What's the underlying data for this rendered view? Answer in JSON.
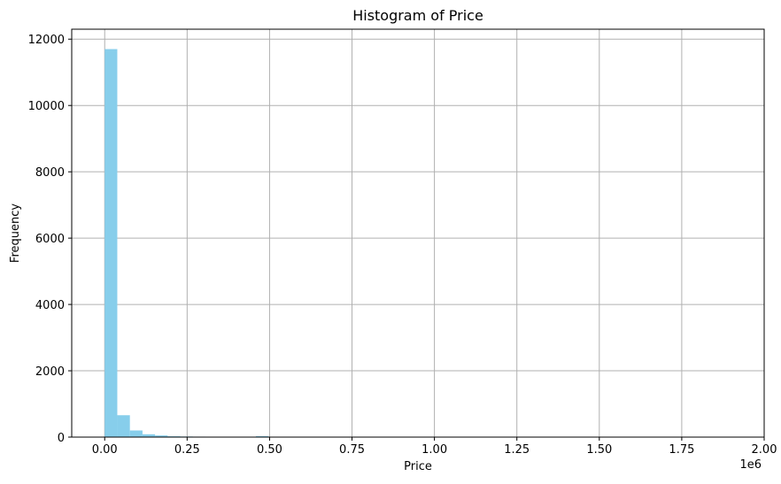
{
  "chart_data": {
    "type": "bar",
    "title": "Histogram of Price",
    "xlabel": "Price",
    "ylabel": "Frequency",
    "x_offset_label": "1e6",
    "xlim": [
      -0.1,
      2.0
    ],
    "ylim": [
      0,
      12300
    ],
    "x_ticks": [
      0.0,
      0.25,
      0.5,
      0.75,
      1.0,
      1.25,
      1.5,
      1.75,
      2.0
    ],
    "x_tick_labels": [
      "0.00",
      "0.25",
      "0.50",
      "0.75",
      "1.00",
      "1.25",
      "1.50",
      "1.75",
      "2.00"
    ],
    "y_ticks": [
      0,
      2000,
      4000,
      6000,
      8000,
      10000,
      12000
    ],
    "y_tick_labels": [
      "0",
      "2000",
      "4000",
      "6000",
      "8000",
      "10000",
      "12000"
    ],
    "grid": true,
    "bar_color": "#87CEEB",
    "grid_color": "#b0b0b0",
    "bin_width": 0.0382,
    "bin_start": 0.0,
    "values": [
      11700,
      660,
      200,
      85,
      50,
      25,
      18,
      14,
      12,
      10,
      5,
      4,
      30,
      0,
      0,
      0,
      0,
      0,
      0,
      0,
      0,
      0,
      0,
      0,
      0,
      0,
      0,
      0,
      0,
      0,
      0,
      0,
      0,
      0,
      0,
      0,
      0,
      0,
      0,
      0,
      0,
      0,
      0,
      0,
      0,
      0,
      0,
      0,
      0,
      1
    ]
  }
}
